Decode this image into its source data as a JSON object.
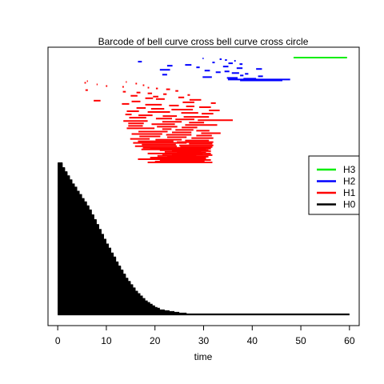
{
  "chart_data": {
    "type": "barcode",
    "title": "Barcode of bell curve cross bell curve cross circle",
    "xlabel": "time",
    "xlim": [
      -2,
      62
    ],
    "x_ticks": [
      0,
      10,
      20,
      30,
      40,
      50,
      60
    ],
    "legend": {
      "placement": "right",
      "entries": [
        {
          "name": "H3",
          "color": "#00ee00"
        },
        {
          "name": "H2",
          "color": "#0000ff"
        },
        {
          "name": "H1",
          "color": "#ff0000"
        },
        {
          "name": "H0",
          "color": "#000000"
        }
      ]
    },
    "series": [
      {
        "name": "H3",
        "color": "#00ee00",
        "bars": [
          [
            48.5,
            59.5
          ]
        ]
      },
      {
        "name": "H2",
        "color": "#0000ff",
        "bars": [
          [
            29.8,
            30.0
          ],
          [
            33.3,
            33.7
          ],
          [
            34.4,
            34.8
          ],
          [
            36.3,
            36.6
          ],
          [
            16.5,
            17.3
          ],
          [
            31.8,
            32.3
          ],
          [
            35.1,
            36.0
          ],
          [
            37.4,
            38.0
          ],
          [
            26.2,
            27.5
          ],
          [
            22.5,
            23.6
          ],
          [
            34.0,
            35.1
          ],
          [
            28.5,
            29.2
          ],
          [
            36.8,
            38.0
          ],
          [
            40.8,
            42.0
          ],
          [
            21.0,
            23.1
          ],
          [
            30.2,
            31.3
          ],
          [
            34.3,
            35.3
          ],
          [
            32.5,
            33.5
          ],
          [
            35.8,
            37.3
          ],
          [
            38.5,
            39.2
          ],
          [
            21.5,
            22.5
          ],
          [
            37.5,
            38.2
          ],
          [
            41.2,
            42.2
          ],
          [
            29.8,
            31.7
          ],
          [
            34.8,
            37.0
          ],
          [
            38.2,
            40.8
          ],
          [
            35.0,
            47.8
          ],
          [
            37.5,
            46.2
          ]
        ]
      },
      {
        "name": "H1",
        "color": "#ff0000",
        "bars": [
          [
            6.0,
            6.2
          ],
          [
            14.0,
            14.2
          ],
          [
            5.5,
            5.8
          ],
          [
            16.0,
            16.3
          ],
          [
            8.0,
            8.2
          ],
          [
            17.5,
            17.8
          ],
          [
            9.9,
            10.2
          ],
          [
            13.3,
            13.6
          ],
          [
            18.5,
            18.8
          ],
          [
            20.2,
            20.6
          ],
          [
            22.3,
            23.1
          ],
          [
            5.7,
            6.2
          ],
          [
            24.2,
            24.8
          ],
          [
            13.4,
            14.0
          ],
          [
            16.2,
            17.0
          ],
          [
            18.5,
            19.4
          ],
          [
            21.7,
            22.4
          ],
          [
            26.7,
            27.2
          ],
          [
            15.0,
            16.4
          ],
          [
            19.6,
            20.7
          ],
          [
            24.8,
            26.0
          ],
          [
            18.0,
            19.6
          ],
          [
            20.2,
            22.0
          ],
          [
            27.1,
            29.5
          ],
          [
            7.4,
            8.8
          ],
          [
            15.2,
            17.0
          ],
          [
            25.7,
            28.1
          ],
          [
            31.5,
            32.5
          ],
          [
            13.2,
            14.7
          ],
          [
            18.0,
            21.4
          ],
          [
            22.9,
            24.9
          ],
          [
            26.4,
            28.1
          ],
          [
            29.1,
            31.5
          ],
          [
            16.2,
            18.1
          ],
          [
            19.2,
            21.9
          ],
          [
            23.4,
            27.8
          ],
          [
            31.1,
            33.3
          ],
          [
            14.2,
            16.7
          ],
          [
            18.5,
            23.1
          ],
          [
            25.4,
            28.9
          ],
          [
            29.6,
            32.0
          ],
          [
            13.9,
            15.2
          ],
          [
            16.6,
            19.5
          ],
          [
            21.6,
            24.5
          ],
          [
            25.9,
            31.1
          ],
          [
            14.7,
            18.2
          ],
          [
            20.2,
            23.5
          ],
          [
            24.2,
            28.1
          ],
          [
            28.8,
            36.0
          ],
          [
            13.5,
            18.5
          ],
          [
            21.5,
            25.5
          ],
          [
            27.0,
            30.1
          ],
          [
            14.5,
            17.7
          ],
          [
            19.3,
            24.1
          ],
          [
            26.2,
            32.8
          ],
          [
            14.5,
            17.5
          ],
          [
            20.4,
            24.6
          ],
          [
            25.5,
            28.7
          ],
          [
            14.2,
            19.9
          ],
          [
            21.5,
            23.4
          ],
          [
            24.2,
            27.9
          ],
          [
            28.5,
            31.2
          ],
          [
            16.6,
            22.6
          ],
          [
            23.5,
            27.5
          ],
          [
            29.5,
            33.5
          ],
          [
            15.2,
            21.5
          ],
          [
            22.3,
            27.5
          ],
          [
            28.5,
            31.7
          ],
          [
            16.8,
            21.1
          ],
          [
            22.5,
            26.5
          ],
          [
            27.5,
            32.0
          ],
          [
            14.9,
            18.9
          ],
          [
            20.1,
            25.5
          ],
          [
            26.2,
            31.1
          ],
          [
            16.5,
            23.8
          ],
          [
            24.5,
            32.0
          ],
          [
            15.5,
            26.5
          ],
          [
            27.0,
            31.8
          ],
          [
            17.3,
            24.3
          ],
          [
            25.0,
            32.0
          ],
          [
            15.9,
            24.5
          ],
          [
            25.2,
            31.8
          ],
          [
            17.5,
            31.5
          ],
          [
            19.0,
            31.5
          ],
          [
            17.2,
            30.5
          ],
          [
            21.0,
            31.0
          ],
          [
            23.5,
            31.5
          ],
          [
            22.0,
            29.5
          ],
          [
            24.5,
            30.5
          ],
          [
            18.5,
            31.5
          ],
          [
            21.5,
            29.8
          ],
          [
            23.5,
            31.8
          ],
          [
            20.5,
            28.5
          ],
          [
            22.5,
            31.0
          ],
          [
            19.0,
            30.5
          ],
          [
            24.0,
            29.5
          ],
          [
            16.5,
            30.5
          ],
          [
            21.0,
            31.5
          ],
          [
            23.0,
            30.2
          ],
          [
            20.0,
            28.0
          ],
          [
            18.5,
            31.8
          ]
        ]
      },
      {
        "name": "H0",
        "color": "#000000",
        "bars": [
          [
            0,
            1
          ],
          [
            0,
            1
          ],
          [
            0,
            1
          ],
          [
            0,
            1
          ],
          [
            0,
            1
          ],
          [
            0,
            1
          ],
          [
            0,
            1.5
          ],
          [
            0,
            1.5
          ],
          [
            0,
            1.5
          ],
          [
            0,
            1.5
          ],
          [
            0,
            1.5
          ],
          [
            0,
            2
          ],
          [
            0,
            2
          ],
          [
            0,
            2
          ],
          [
            0,
            2
          ],
          [
            0,
            2
          ],
          [
            0,
            2.5
          ],
          [
            0,
            2.5
          ],
          [
            0,
            2.5
          ],
          [
            0,
            2.5
          ],
          [
            0,
            2.5
          ],
          [
            0,
            3
          ],
          [
            0,
            3
          ],
          [
            0,
            3
          ],
          [
            0,
            3
          ],
          [
            0,
            3
          ],
          [
            0,
            3.5
          ],
          [
            0,
            3.5
          ],
          [
            0,
            3.5
          ],
          [
            0,
            3.5
          ],
          [
            0,
            4
          ],
          [
            0,
            4
          ],
          [
            0,
            4
          ],
          [
            0,
            4
          ],
          [
            0,
            4
          ],
          [
            0,
            4.5
          ],
          [
            0,
            4.5
          ],
          [
            0,
            4.5
          ],
          [
            0,
            4.5
          ],
          [
            0,
            5
          ],
          [
            0,
            5
          ],
          [
            0,
            5
          ],
          [
            0,
            5
          ],
          [
            0,
            5
          ],
          [
            0,
            5.5
          ],
          [
            0,
            5.5
          ],
          [
            0,
            5.5
          ],
          [
            0,
            5.5
          ],
          [
            0,
            6
          ],
          [
            0,
            6
          ],
          [
            0,
            6
          ],
          [
            0,
            6
          ],
          [
            0,
            6
          ],
          [
            0,
            6.5
          ],
          [
            0,
            6.5
          ],
          [
            0,
            6.5
          ],
          [
            0,
            6.5
          ],
          [
            0,
            6.5
          ],
          [
            0,
            7
          ],
          [
            0,
            7
          ],
          [
            0,
            7
          ],
          [
            0,
            7
          ],
          [
            0,
            7
          ],
          [
            0,
            7
          ],
          [
            0,
            7.5
          ],
          [
            0,
            7.5
          ],
          [
            0,
            7.5
          ],
          [
            0,
            7.5
          ],
          [
            0,
            7.5
          ],
          [
            0,
            7.5
          ],
          [
            0,
            8
          ],
          [
            0,
            8
          ],
          [
            0,
            8
          ],
          [
            0,
            8
          ],
          [
            0,
            8
          ],
          [
            0,
            8
          ],
          [
            0,
            8.5
          ],
          [
            0,
            8.5
          ],
          [
            0,
            8.5
          ],
          [
            0,
            8.5
          ],
          [
            0,
            8.5
          ],
          [
            0,
            8.5
          ],
          [
            0,
            9
          ],
          [
            0,
            9
          ],
          [
            0,
            9
          ],
          [
            0,
            9
          ],
          [
            0,
            9
          ],
          [
            0,
            9
          ],
          [
            0,
            9.5
          ],
          [
            0,
            9.5
          ],
          [
            0,
            9.5
          ],
          [
            0,
            9.5
          ],
          [
            0,
            9.5
          ],
          [
            0,
            9.5
          ],
          [
            0,
            10
          ],
          [
            0,
            10
          ],
          [
            0,
            10
          ],
          [
            0,
            10
          ],
          [
            0,
            10
          ],
          [
            0,
            10
          ],
          [
            0,
            10.5
          ],
          [
            0,
            10.5
          ],
          [
            0,
            10.5
          ],
          [
            0,
            10.5
          ],
          [
            0,
            10.5
          ],
          [
            0,
            11
          ],
          [
            0,
            11
          ],
          [
            0,
            11
          ],
          [
            0,
            11
          ],
          [
            0,
            11
          ],
          [
            0,
            11
          ],
          [
            0,
            11.5
          ],
          [
            0,
            11.5
          ],
          [
            0,
            11.5
          ],
          [
            0,
            11.5
          ],
          [
            0,
            11.5
          ],
          [
            0,
            12
          ],
          [
            0,
            12
          ],
          [
            0,
            12
          ],
          [
            0,
            12
          ],
          [
            0,
            12
          ],
          [
            0,
            12
          ],
          [
            0,
            12.5
          ],
          [
            0,
            12.5
          ],
          [
            0,
            12.5
          ],
          [
            0,
            12.5
          ],
          [
            0,
            12.5
          ],
          [
            0,
            13
          ],
          [
            0,
            13
          ],
          [
            0,
            13
          ],
          [
            0,
            13
          ],
          [
            0,
            13
          ],
          [
            0,
            13.5
          ],
          [
            0,
            13.5
          ],
          [
            0,
            13.5
          ],
          [
            0,
            13.5
          ],
          [
            0,
            13.5
          ],
          [
            0,
            14
          ],
          [
            0,
            14
          ],
          [
            0,
            14
          ],
          [
            0,
            14
          ],
          [
            0,
            14
          ],
          [
            0,
            14.5
          ],
          [
            0,
            14.5
          ],
          [
            0,
            14.5
          ],
          [
            0,
            14.5
          ],
          [
            0,
            15
          ],
          [
            0,
            15
          ],
          [
            0,
            15
          ],
          [
            0,
            15
          ],
          [
            0,
            15.5
          ],
          [
            0,
            15.5
          ],
          [
            0,
            15.5
          ],
          [
            0,
            15.5
          ],
          [
            0,
            16
          ],
          [
            0,
            16
          ],
          [
            0,
            16
          ],
          [
            0,
            16
          ],
          [
            0,
            16.5
          ],
          [
            0,
            16.5
          ],
          [
            0,
            16.5
          ],
          [
            0,
            17
          ],
          [
            0,
            17
          ],
          [
            0,
            17
          ],
          [
            0,
            17.5
          ],
          [
            0,
            17.5
          ],
          [
            0,
            17.5
          ],
          [
            0,
            18
          ],
          [
            0,
            18
          ],
          [
            0,
            18
          ],
          [
            0,
            18.5
          ],
          [
            0,
            18.5
          ],
          [
            0,
            19
          ],
          [
            0,
            19
          ],
          [
            0,
            19.5
          ],
          [
            0,
            19.5
          ],
          [
            0,
            20
          ],
          [
            0,
            20
          ],
          [
            0,
            20.5
          ],
          [
            0,
            21
          ],
          [
            0,
            21
          ],
          [
            0,
            22
          ],
          [
            0,
            23
          ],
          [
            0,
            24
          ],
          [
            0,
            25
          ],
          [
            0,
            26.5
          ],
          [
            0,
            60
          ]
        ]
      }
    ]
  }
}
